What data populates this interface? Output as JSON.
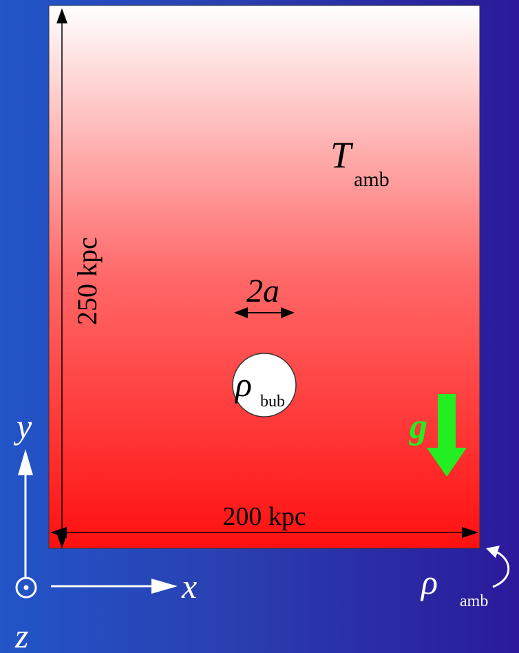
{
  "labels": {
    "height": "250 kpc",
    "width": "200 kpc",
    "T": "T",
    "T_sub": "amb",
    "diameter": "2a",
    "rho_bub": "ρ",
    "rho_bub_sub": "bub",
    "gravity": "g",
    "rho_amb": "ρ",
    "rho_amb_sub": "amb",
    "axis_x": "x",
    "axis_y": "y",
    "axis_z": "z"
  },
  "colors": {
    "box_top": "#ffffff",
    "box_bottom": "#ff1010",
    "gravity_arrow": "#22ee22",
    "axes": "#ffffff"
  }
}
